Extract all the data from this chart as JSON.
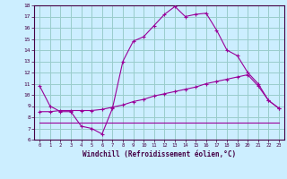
{
  "xlabel": "Windchill (Refroidissement éolien,°C)",
  "bg_color": "#cceeff",
  "grid_color": "#99cccc",
  "line_color": "#990099",
  "xlim": [
    -0.5,
    23.5
  ],
  "ylim": [
    6,
    18
  ],
  "yticks": [
    6,
    7,
    8,
    9,
    10,
    11,
    12,
    13,
    14,
    15,
    16,
    17,
    18
  ],
  "xticks": [
    0,
    1,
    2,
    3,
    4,
    5,
    6,
    7,
    8,
    9,
    10,
    11,
    12,
    13,
    14,
    15,
    16,
    17,
    18,
    19,
    20,
    21,
    22,
    23
  ],
  "line1_x": [
    0,
    1,
    2,
    3,
    4,
    5,
    6,
    7,
    8,
    9,
    10,
    11,
    12,
    13,
    14,
    15,
    16,
    17,
    18,
    19,
    20,
    21,
    22,
    23
  ],
  "line1_y": [
    10.8,
    9.0,
    8.5,
    8.5,
    7.2,
    7.0,
    6.5,
    8.8,
    13.0,
    14.8,
    15.2,
    16.2,
    17.2,
    17.9,
    17.0,
    17.2,
    17.3,
    15.8,
    14.0,
    13.5,
    12.0,
    11.0,
    9.5,
    8.8
  ],
  "line2_x": [
    0,
    1,
    2,
    3,
    4,
    5,
    6,
    7,
    8,
    9,
    10,
    11,
    12,
    13,
    14,
    15,
    16,
    17,
    18,
    19,
    20,
    21,
    22,
    23
  ],
  "line2_y": [
    8.5,
    8.5,
    8.6,
    8.6,
    8.6,
    8.6,
    8.7,
    8.9,
    9.1,
    9.4,
    9.6,
    9.9,
    10.1,
    10.3,
    10.5,
    10.7,
    11.0,
    11.2,
    11.4,
    11.6,
    11.8,
    10.8,
    9.5,
    8.8
  ],
  "line3_x": [
    0,
    1,
    2,
    3,
    4,
    5,
    6,
    7,
    8,
    9,
    10,
    11,
    12,
    13,
    14,
    15,
    16,
    17,
    18,
    19,
    20,
    21,
    22,
    23
  ],
  "line3_y": [
    7.5,
    7.5,
    7.5,
    7.5,
    7.5,
    7.5,
    7.5,
    7.5,
    7.5,
    7.5,
    7.5,
    7.5,
    7.5,
    7.5,
    7.5,
    7.5,
    7.5,
    7.5,
    7.5,
    7.5,
    7.5,
    7.5,
    7.5,
    7.5
  ]
}
